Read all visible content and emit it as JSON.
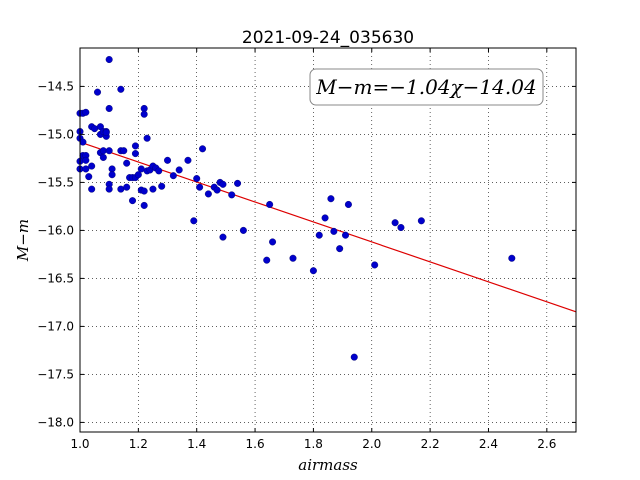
{
  "chart_data": {
    "type": "scatter",
    "title": "2021-09-24_035630",
    "xlabel": "airmass",
    "ylabel": "M−m",
    "xlim": [
      1.0,
      2.7
    ],
    "ylim": [
      -18.1,
      -14.1
    ],
    "xticks": [
      1.0,
      1.2,
      1.4,
      1.6,
      1.8,
      2.0,
      2.2,
      2.4,
      2.6
    ],
    "xtick_labels": [
      "1.0",
      "1.2",
      "1.4",
      "1.6",
      "1.8",
      "2.0",
      "2.2",
      "2.4",
      "2.6"
    ],
    "yticks": [
      -14.5,
      -15.0,
      -15.5,
      -16.0,
      -16.5,
      -17.0,
      -17.5,
      -18.0
    ],
    "ytick_labels": [
      "−14.5",
      "−15.0",
      "−15.5",
      "−16.0",
      "−16.5",
      "−17.0",
      "−17.5",
      "−18.0"
    ],
    "grid": true,
    "annotation": "M−m=−1.04χ−14.04",
    "fit": {
      "slope": -1.04,
      "intercept": -14.04,
      "x_range": [
        1.0,
        2.7
      ]
    },
    "colors": {
      "points": "#0000cc",
      "fit_line": "#dd0000"
    },
    "points": [
      [
        1.0,
        -14.78
      ],
      [
        1.0,
        -14.97
      ],
      [
        1.0,
        -15.04
      ],
      [
        1.0,
        -15.28
      ],
      [
        1.0,
        -15.36
      ],
      [
        1.01,
        -14.78
      ],
      [
        1.01,
        -15.08
      ],
      [
        1.01,
        -15.22
      ],
      [
        1.02,
        -14.77
      ],
      [
        1.02,
        -15.22
      ],
      [
        1.02,
        -15.27
      ],
      [
        1.02,
        -15.36
      ],
      [
        1.03,
        -15.44
      ],
      [
        1.04,
        -14.92
      ],
      [
        1.04,
        -15.33
      ],
      [
        1.04,
        -15.57
      ],
      [
        1.05,
        -14.94
      ],
      [
        1.06,
        -14.56
      ],
      [
        1.07,
        -14.92
      ],
      [
        1.07,
        -15.0
      ],
      [
        1.07,
        -15.19
      ],
      [
        1.08,
        -14.97
      ],
      [
        1.08,
        -15.24
      ],
      [
        1.08,
        -15.17
      ],
      [
        1.09,
        -14.97
      ],
      [
        1.09,
        -15.02
      ],
      [
        1.09,
        -14.98
      ],
      [
        1.1,
        -14.73
      ],
      [
        1.1,
        -14.22
      ],
      [
        1.1,
        -15.17
      ],
      [
        1.1,
        -15.52
      ],
      [
        1.1,
        -15.57
      ],
      [
        1.11,
        -15.36
      ],
      [
        1.11,
        -15.42
      ],
      [
        1.14,
        -15.57
      ],
      [
        1.14,
        -14.53
      ],
      [
        1.14,
        -15.17
      ],
      [
        1.15,
        -15.17
      ],
      [
        1.16,
        -15.3
      ],
      [
        1.16,
        -15.55
      ],
      [
        1.17,
        -15.45
      ],
      [
        1.18,
        -15.69
      ],
      [
        1.18,
        -15.45
      ],
      [
        1.19,
        -15.12
      ],
      [
        1.19,
        -15.45
      ],
      [
        1.19,
        -15.2
      ],
      [
        1.2,
        -15.42
      ],
      [
        1.21,
        -15.58
      ],
      [
        1.21,
        -15.36
      ],
      [
        1.22,
        -14.73
      ],
      [
        1.22,
        -14.79
      ],
      [
        1.22,
        -15.59
      ],
      [
        1.22,
        -15.74
      ],
      [
        1.23,
        -15.38
      ],
      [
        1.23,
        -15.04
      ],
      [
        1.24,
        -15.37
      ],
      [
        1.25,
        -15.33
      ],
      [
        1.25,
        -15.57
      ],
      [
        1.26,
        -15.35
      ],
      [
        1.27,
        -15.38
      ],
      [
        1.28,
        -15.54
      ],
      [
        1.3,
        -15.27
      ],
      [
        1.32,
        -15.43
      ],
      [
        1.34,
        -15.37
      ],
      [
        1.37,
        -15.27
      ],
      [
        1.39,
        -15.9
      ],
      [
        1.4,
        -15.46
      ],
      [
        1.41,
        -15.55
      ],
      [
        1.42,
        -15.15
      ],
      [
        1.44,
        -15.62
      ],
      [
        1.46,
        -15.55
      ],
      [
        1.47,
        -15.58
      ],
      [
        1.48,
        -15.5
      ],
      [
        1.49,
        -15.52
      ],
      [
        1.49,
        -16.07
      ],
      [
        1.52,
        -15.63
      ],
      [
        1.54,
        -15.51
      ],
      [
        1.56,
        -16.0
      ],
      [
        1.64,
        -16.31
      ],
      [
        1.65,
        -15.73
      ],
      [
        1.66,
        -16.12
      ],
      [
        1.73,
        -16.29
      ],
      [
        1.8,
        -16.42
      ],
      [
        1.82,
        -16.05
      ],
      [
        1.84,
        -15.87
      ],
      [
        1.86,
        -15.67
      ],
      [
        1.87,
        -16.01
      ],
      [
        1.89,
        -16.19
      ],
      [
        1.91,
        -16.05
      ],
      [
        1.92,
        -15.73
      ],
      [
        1.94,
        -17.32
      ],
      [
        2.01,
        -16.36
      ],
      [
        2.08,
        -15.92
      ],
      [
        2.1,
        -15.97
      ],
      [
        2.17,
        -15.9
      ],
      [
        2.48,
        -16.29
      ]
    ]
  }
}
